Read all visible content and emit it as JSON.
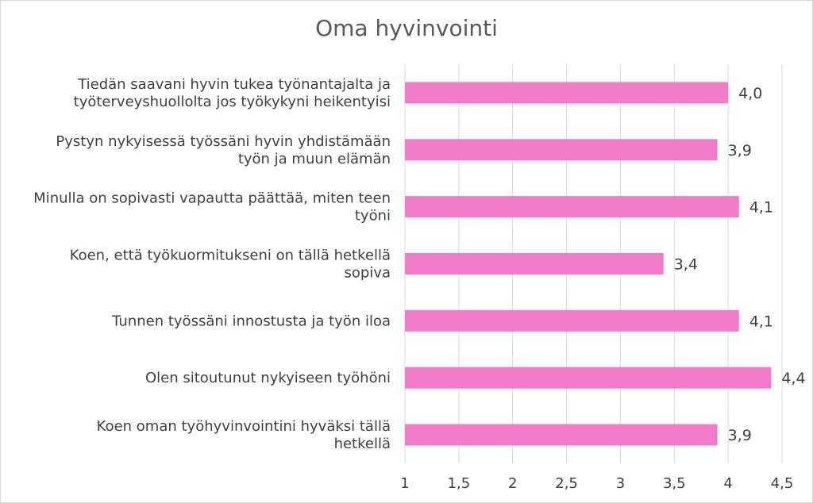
{
  "chart_data": {
    "type": "bar",
    "orientation": "horizontal",
    "title": "Oma hyvinvointi",
    "xlabel": "",
    "ylabel": "",
    "xlim": [
      1,
      4.5
    ],
    "x_ticks": [
      "1",
      "1,5",
      "2",
      "2,5",
      "3",
      "3,5",
      "4",
      "4,5"
    ],
    "x_tick_values": [
      1,
      1.5,
      2,
      2.5,
      3,
      3.5,
      4,
      4.5
    ],
    "grid": "vertical",
    "categories": [
      [
        "Tiedän saavani hyvin tukea työnantajalta ja",
        "työterveyshuollolta jos työkykyni heikentyisi"
      ],
      [
        "Pystyn nykyisessä työssäni hyvin yhdistämään",
        "työn ja muun elämän"
      ],
      [
        "Minulla on sopivasti vapautta päättää, miten teen",
        "työni"
      ],
      [
        "Koen, että työkuormitukseni on tällä hetkellä",
        "sopiva"
      ],
      [
        "Tunnen työssäni innostusta ja työn iloa"
      ],
      [
        "Olen sitoutunut nykyiseen työhöni"
      ],
      [
        "Koen oman työhyvinvointini hyväksi tällä",
        "hetkellä"
      ]
    ],
    "values": [
      4.0,
      3.9,
      4.1,
      3.4,
      4.1,
      4.4,
      3.9
    ],
    "value_labels": [
      "4,0",
      "3,9",
      "4,1",
      "3,4",
      "4,1",
      "4,4",
      "3,9"
    ],
    "bar_color": "#f27bc9",
    "grid_color": "#d9d9d9",
    "text_color": "#404040",
    "title_color": "#595959"
  }
}
